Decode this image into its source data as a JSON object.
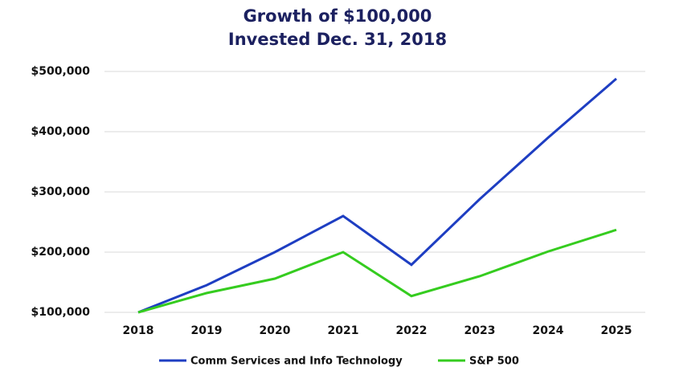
{
  "chart_data": {
    "type": "line",
    "title": [
      "Growth of $100,000",
      "Invested Dec. 31, 2018"
    ],
    "categories": [
      "2018",
      "2019",
      "2020",
      "2021",
      "2022",
      "2023",
      "2024",
      "2025"
    ],
    "series": [
      {
        "name": "Comm Services and Info Technology",
        "color": "#1e3ec2",
        "values": [
          100000,
          145000,
          200000,
          260000,
          179000,
          288000,
          390000,
          488000
        ]
      },
      {
        "name": "S&P 500",
        "color": "#35cc1f",
        "values": [
          100000,
          132000,
          156000,
          200000,
          127000,
          160000,
          201000,
          237000
        ]
      }
    ],
    "ylim": [
      100000,
      500000
    ],
    "yticks": [
      {
        "value": 100000,
        "label": "$100,000"
      },
      {
        "value": 200000,
        "label": "$200,000"
      },
      {
        "value": 300000,
        "label": "$300,000"
      },
      {
        "value": 400000,
        "label": "$400,000"
      },
      {
        "value": 500000,
        "label": "$500,000"
      }
    ],
    "grid": true,
    "legend": "bottom"
  }
}
